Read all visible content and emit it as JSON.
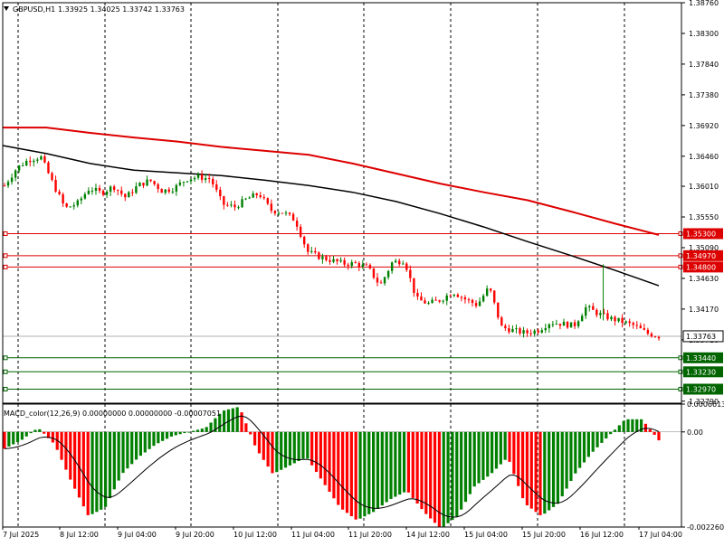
{
  "header": {
    "menu_icon": "triangle-down-icon",
    "symbol": "GBPUSD,H1",
    "ohlc": "1.33925 1.34025 1.33742 1.33763"
  },
  "macd_header": "MACD_color(12,26,9) 0.00000000 0.00000000 -0.00007051",
  "colors": {
    "bull": "#008000",
    "bear": "#ff0000",
    "ma_fast": "#000000",
    "ma_slow": "#dd0000",
    "level_red": "#dd0000",
    "level_green": "#006400",
    "grid": "#000000"
  },
  "chart_data": [
    {
      "type": "candlestick",
      "title": "GBPUSD,H1",
      "ylim": [
        1.3276,
        1.3876
      ],
      "y_ticks": [
        "1.38760",
        "1.38300",
        "1.37840",
        "1.37380",
        "1.36920",
        "1.36460",
        "1.36010",
        "1.35550",
        "1.35090",
        "1.34630",
        "1.34170",
        "1.33710",
        "1.32790"
      ],
      "x_ticks": [
        "7 Jul 2025",
        "8 Jul 12:00",
        "9 Jul 04:00",
        "9 Jul 20:00",
        "10 Jul 12:00",
        "11 Jul 04:00",
        "11 Jul 20:00",
        "14 Jul 12:00",
        "15 Jul 04:00",
        "15 Jul 20:00",
        "16 Jul 12:00",
        "17 Jul 04:00"
      ],
      "close_path": [
        1.3602,
        1.3628,
        1.3641,
        1.3645,
        1.3605,
        1.3568,
        1.3575,
        1.3598,
        1.3591,
        1.3601,
        1.3584,
        1.3602,
        1.361,
        1.3594,
        1.3598,
        1.3612,
        1.3615,
        1.3612,
        1.3574,
        1.357,
        1.3582,
        1.359,
        1.3565,
        1.3562,
        1.355,
        1.3503,
        1.3495,
        1.349,
        1.3485,
        1.3485,
        1.3479,
        1.3452,
        1.3487,
        1.349,
        1.3432,
        1.3425,
        1.3431,
        1.3443,
        1.3432,
        1.3423,
        1.345,
        1.339,
        1.3385,
        1.3381,
        1.3385,
        1.3397,
        1.3395,
        1.3392,
        1.342,
        1.341,
        1.3403,
        1.3398,
        1.3392,
        1.3381,
        1.3376
      ],
      "ma_fast": [
        1.3662,
        1.365,
        1.3635,
        1.3625,
        1.3621,
        1.3617,
        1.361,
        1.3602,
        1.3592,
        1.3578,
        1.356,
        1.354,
        1.3518,
        1.3497,
        1.3475,
        1.3452
      ],
      "ma_slow": [
        1.3689,
        1.3689,
        1.3681,
        1.3674,
        1.3668,
        1.366,
        1.3654,
        1.3648,
        1.3635,
        1.362,
        1.3605,
        1.3592,
        1.358,
        1.3563,
        1.3545,
        1.3528
      ],
      "levels": [
        {
          "label": "1.35300",
          "value": 1.353,
          "kind": "resistance"
        },
        {
          "label": "1.34970",
          "value": 1.3497,
          "kind": "resistance"
        },
        {
          "label": "1.34800",
          "value": 1.348,
          "kind": "resistance"
        },
        {
          "label": "1.33440",
          "value": 1.3344,
          "kind": "support"
        },
        {
          "label": "1.33230",
          "value": 1.3323,
          "kind": "support"
        },
        {
          "label": "1.32970",
          "value": 1.3297,
          "kind": "support"
        }
      ],
      "current_price": {
        "label": "1.33763",
        "value": 1.33763
      }
    },
    {
      "type": "histogram",
      "title": "MACD_color(12,26,9)",
      "ylim": [
        -0.00226,
        0.0006613
      ],
      "y_ticks": [
        "0.0006613",
        "0.00",
        "-0.0022600"
      ],
      "key_values": [
        -0.0004,
        -0.0002,
        0.0001,
        -0.0003,
        -0.0012,
        -0.002,
        -0.0018,
        -0.001,
        -0.0006,
        -0.0003,
        -0.0001,
        -0.0,
        0.0001,
        0.0005,
        0.0006,
        -0.0004,
        -0.001,
        -0.0008,
        -0.0006,
        -0.0012,
        -0.0018,
        -0.0021,
        -0.0019,
        -0.0016,
        -0.0014,
        -0.0019,
        -0.0023,
        -0.002,
        -0.0013,
        -0.001,
        -0.0006,
        -0.0017,
        -0.002,
        -0.0017,
        -0.001,
        -0.0005,
        -0.0001,
        0.0003,
        0.0003,
        -0.0002
      ]
    }
  ]
}
